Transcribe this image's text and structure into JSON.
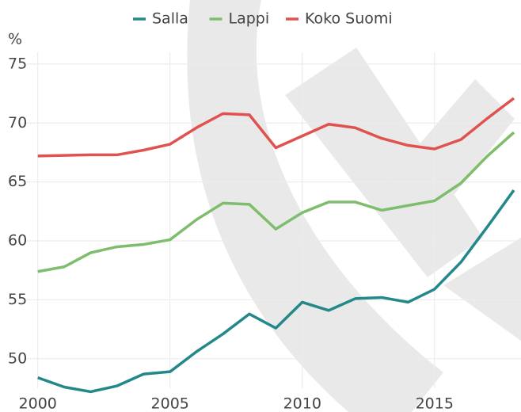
{
  "chart_data": {
    "type": "line",
    "y_label": "%",
    "x": [
      2000,
      2001,
      2002,
      2003,
      2004,
      2005,
      2006,
      2007,
      2008,
      2009,
      2010,
      2011,
      2012,
      2013,
      2014,
      2015,
      2016,
      2017,
      2018
    ],
    "series": [
      {
        "name": "Salla",
        "color": "#23888a",
        "values": [
          48.4,
          47.6,
          47.2,
          47.7,
          48.7,
          48.9,
          50.6,
          52.1,
          53.8,
          52.6,
          54.8,
          54.1,
          55.1,
          55.2,
          54.8,
          55.9,
          58.2,
          61.2,
          64.3
        ]
      },
      {
        "name": "Lappi",
        "color": "#7dbd6b",
        "values": [
          57.4,
          57.8,
          59.0,
          59.5,
          59.7,
          60.1,
          61.8,
          63.2,
          63.1,
          61.0,
          62.4,
          63.3,
          63.3,
          62.6,
          63.0,
          63.4,
          64.9,
          67.2,
          69.2
        ]
      },
      {
        "name": "Koko Suomi",
        "color": "#e0524f",
        "values": [
          67.2,
          67.25,
          67.3,
          67.3,
          67.7,
          68.2,
          69.6,
          70.8,
          70.7,
          67.9,
          68.9,
          69.9,
          69.6,
          68.7,
          68.1,
          67.8,
          68.6,
          70.4,
          72.1
        ]
      }
    ],
    "xlim": [
      1999.5,
      2018.3
    ],
    "xticks": [
      2000,
      2005,
      2010,
      2015
    ],
    "ylim": [
      47.5,
      76
    ],
    "yticks": [
      50,
      55,
      60,
      65,
      70,
      75
    ],
    "grid": true,
    "legend": "top"
  }
}
